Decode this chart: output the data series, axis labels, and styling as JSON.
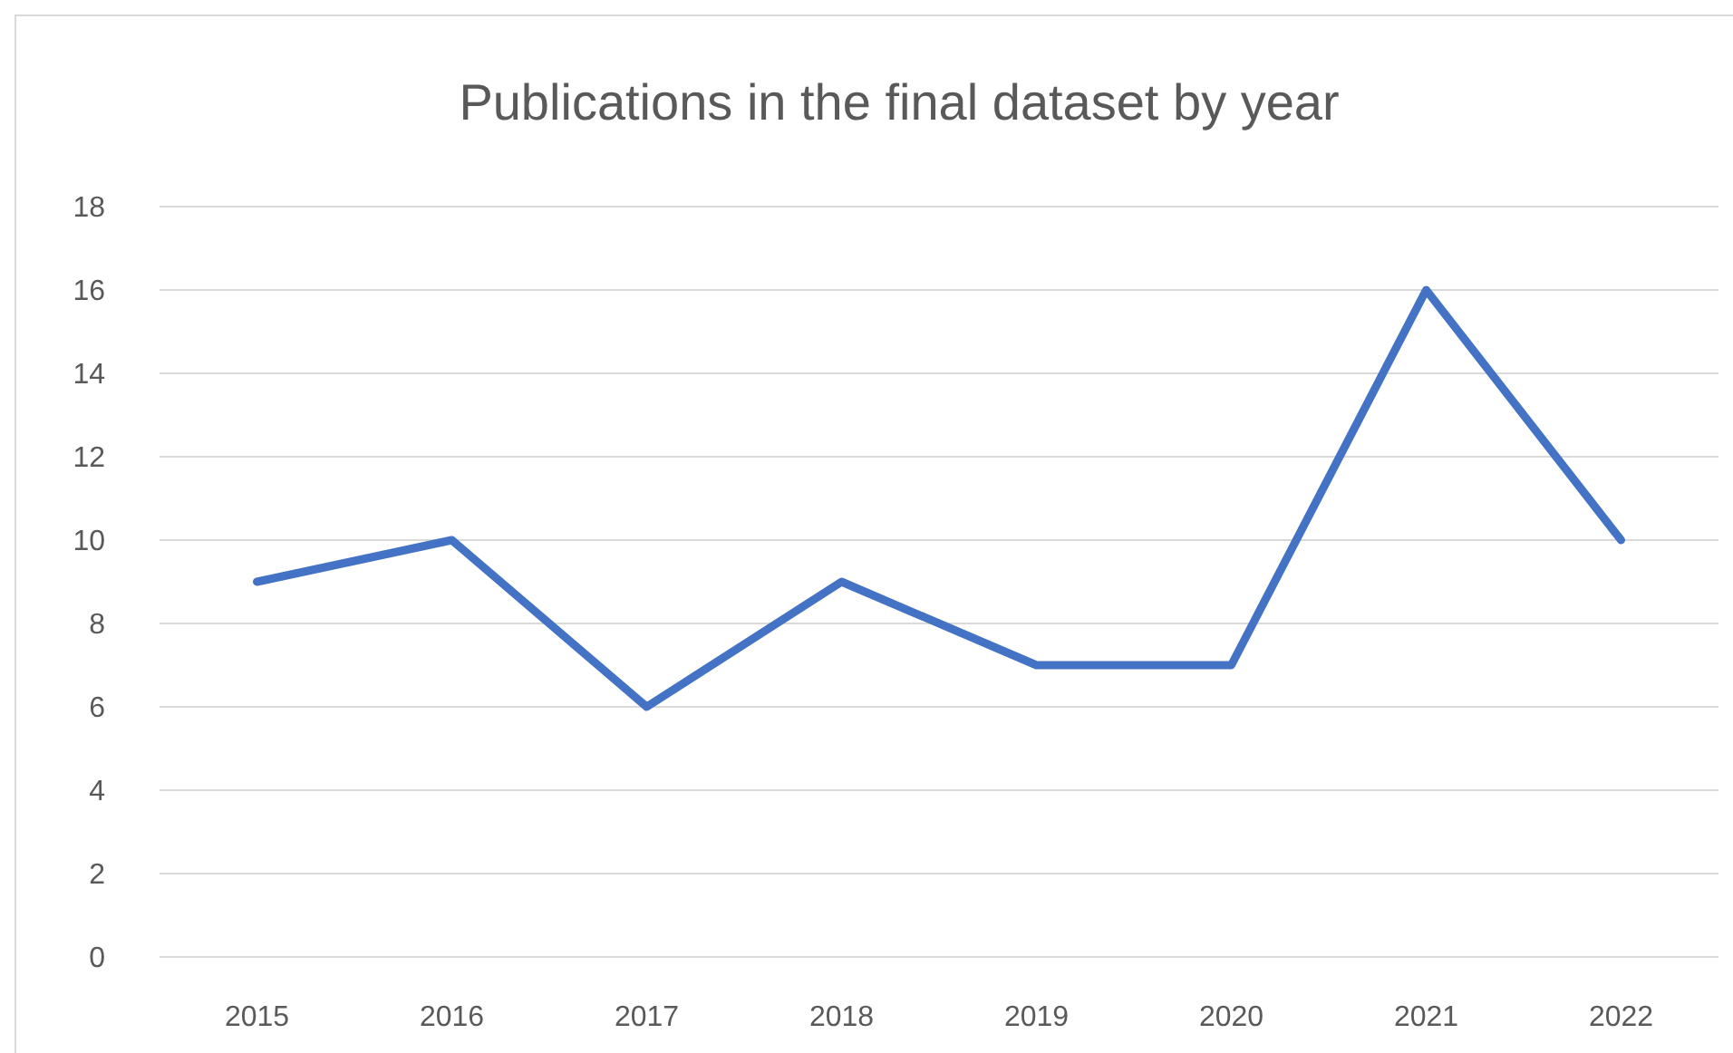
{
  "chart_data": {
    "type": "line",
    "title": "Publications in the final dataset by year",
    "categories": [
      "2015",
      "2016",
      "2017",
      "2018",
      "2019",
      "2020",
      "2021",
      "2022"
    ],
    "series": [
      {
        "color": "#4472c4",
        "values": [
          9,
          10,
          6,
          9,
          7,
          7,
          16,
          10
        ]
      }
    ],
    "ylim": [
      0,
      18
    ],
    "yticks": [
      0,
      2,
      4,
      6,
      8,
      10,
      12,
      14,
      16,
      18
    ],
    "grid": "y",
    "marker": "none",
    "line_style": "solid"
  }
}
